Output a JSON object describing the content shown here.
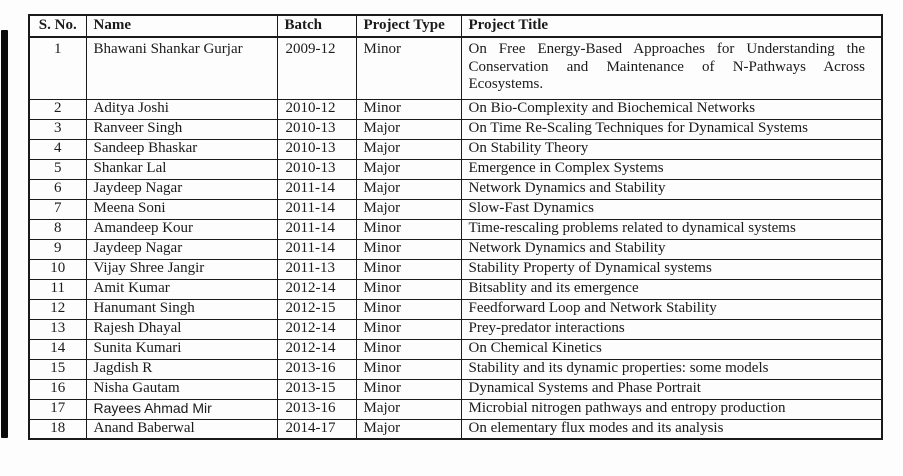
{
  "table": {
    "headers": [
      {
        "key": "sno",
        "label": "S. No."
      },
      {
        "key": "name",
        "label": "Name"
      },
      {
        "key": "batch",
        "label": "Batch"
      },
      {
        "key": "type",
        "label": "Project Type"
      },
      {
        "key": "title",
        "label": "Project Title"
      }
    ],
    "rows": [
      {
        "sno": "1",
        "name": "Bhawani Shankar Gurjar",
        "batch": "2009-12",
        "type": "Minor",
        "title": "On Free Energy-Based Approaches for Understanding the Conservation and Maintenance of N-Pathways Across Ecosystems."
      },
      {
        "sno": "2",
        "name": "Aditya Joshi",
        "batch": "2010-12",
        "type": "Minor",
        "title": "On Bio-Complexity and Biochemical Networks"
      },
      {
        "sno": "3",
        "name": "Ranveer Singh",
        "batch": "2010-13",
        "type": "Major",
        "title": "On Time Re-Scaling Techniques for Dynamical Systems"
      },
      {
        "sno": "4",
        "name": "Sandeep Bhaskar",
        "batch": "2010-13",
        "type": "Major",
        "title": "On Stability Theory"
      },
      {
        "sno": "5",
        "name": "Shankar Lal",
        "batch": "2010-13",
        "type": "Major",
        "title": "Emergence in Complex Systems"
      },
      {
        "sno": "6",
        "name": "Jaydeep Nagar",
        "batch": "2011-14",
        "type": "Major",
        "title": "Network Dynamics and Stability"
      },
      {
        "sno": "7",
        "name": "Meena Soni",
        "batch": "2011-14",
        "type": "Major",
        "title": "Slow-Fast Dynamics"
      },
      {
        "sno": "8",
        "name": "Amandeep Kour",
        "batch": "2011-14",
        "type": "Minor",
        "title": "Time-rescaling problems related to dynamical systems"
      },
      {
        "sno": "9",
        "name": "Jaydeep Nagar",
        "batch": "2011-14",
        "type": "Minor",
        "title": "Network Dynamics and Stability"
      },
      {
        "sno": "10",
        "name": "Vijay Shree Jangir",
        "batch": "2011-13",
        "type": "Minor",
        "title": "Stability Property of Dynamical systems"
      },
      {
        "sno": "11",
        "name": "Amit Kumar",
        "batch": "2012-14",
        "type": "Minor",
        "title": "Bitsablity and its emergence"
      },
      {
        "sno": "12",
        "name": "Hanumant Singh",
        "batch": "2012-15",
        "type": "Minor",
        "title": "Feedforward Loop and Network Stability"
      },
      {
        "sno": "13",
        "name": "Rajesh Dhayal",
        "batch": "2012-14",
        "type": "Minor",
        "title": "Prey-predator interactions"
      },
      {
        "sno": "14",
        "name": "Sunita Kumari",
        "batch": "2012-14",
        "type": "Minor",
        "title": "On Chemical Kinetics"
      },
      {
        "sno": "15",
        "name": "Jagdish R",
        "batch": "2013-16",
        "type": "Minor",
        "title": "Stability and its dynamic properties: some models"
      },
      {
        "sno": "16",
        "name": "Nisha Gautam",
        "batch": "2013-15",
        "type": "Minor",
        "title": "Dynamical Systems and Phase Portrait"
      },
      {
        "sno": "17",
        "name": "Rayees Ahmad Mir",
        "batch": "2013-16",
        "type": "Major",
        "title": "Microbial nitrogen pathways and entropy production",
        "name_sans": true
      },
      {
        "sno": "18",
        "name": "Anand Baberwal",
        "batch": "2014-17",
        "type": "Major",
        "title": "On elementary flux modes and its analysis"
      }
    ]
  },
  "colors": {
    "text": "#1b1b1b",
    "border": "#1a1a1a",
    "scan_strip": "#0a0a0a",
    "background": "#fdfdfd"
  }
}
